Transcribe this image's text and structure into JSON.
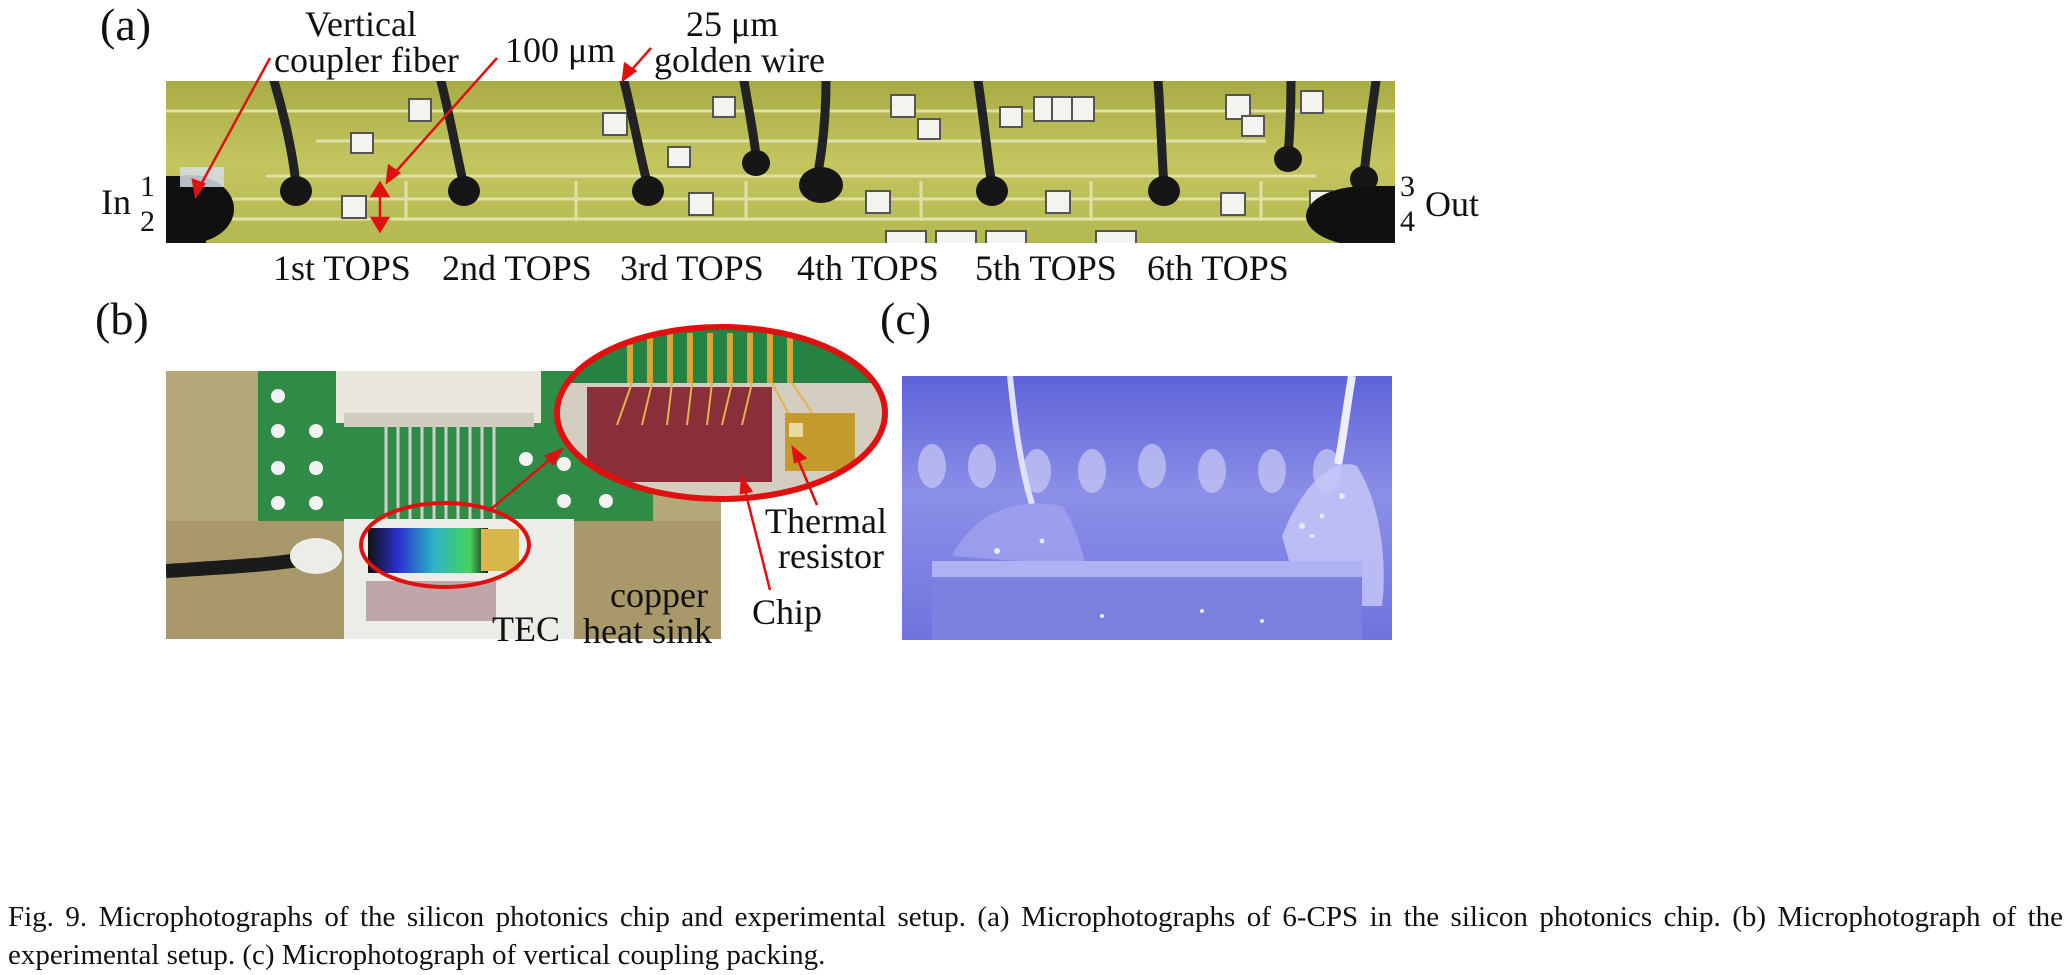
{
  "panel_a": {
    "letter": "(a)",
    "label_vertical_1": "Vertical",
    "label_vertical_2": "coupler fiber",
    "label_100um": "100 μm",
    "label_25um": "25 μm",
    "label_wire": "golden wire",
    "in_label": "In",
    "out_label": "Out",
    "port_1": "1",
    "port_2": "2",
    "port_3": "3",
    "port_4": "4",
    "tops": [
      "1st TOPS",
      "2nd TOPS",
      "3rd TOPS",
      "4th TOPS",
      "5th TOPS",
      "6th TOPS"
    ]
  },
  "panel_b": {
    "letter": "(b)",
    "tec_label": "TEC",
    "copper_1": "copper",
    "copper_2": "heat sink",
    "thermal_1": "Thermal",
    "thermal_2": "resistor",
    "chip_label": "Chip"
  },
  "panel_c": {
    "letter": "(c)"
  },
  "caption": {
    "text": "Fig. 9.  Microphotographs of the silicon photonics chip and experimental setup. (a) Microphotographs of 6-CPS in the silicon photonics chip. (b) Microphotograph of the experimental setup. (c) Microphotograph of vertical coupling packing."
  },
  "colors": {
    "chip_yellow": "#bfc257",
    "pcb_green": "#2e8a45",
    "arrow_red": "#e01010",
    "coupling_blue": "#7b7fe0"
  }
}
